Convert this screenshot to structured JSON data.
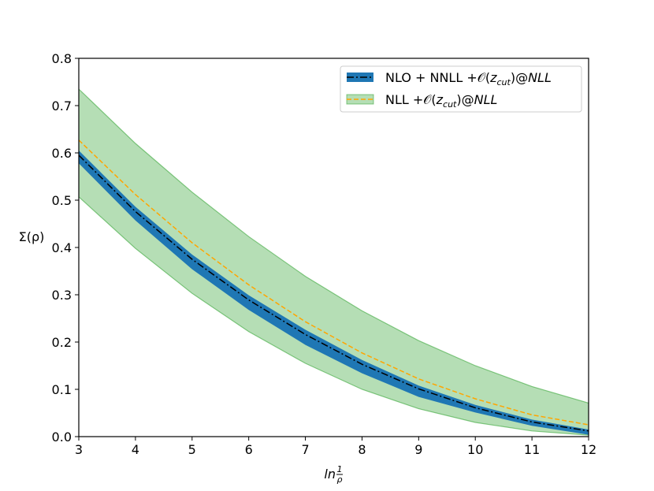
{
  "chart_data": {
    "type": "area",
    "x": [
      3,
      4,
      5,
      6,
      7,
      8,
      9,
      10,
      11,
      12
    ],
    "xlim": [
      3,
      12
    ],
    "ylim": [
      0,
      0.8
    ],
    "xticks": [
      "3",
      "4",
      "5",
      "6",
      "7",
      "8",
      "9",
      "10",
      "11",
      "12"
    ],
    "yticks": [
      "0.0",
      "0.1",
      "0.2",
      "0.3",
      "0.4",
      "0.5",
      "0.6",
      "0.7",
      "0.8"
    ],
    "xlabel": "ln",
    "xlabel_frac_num": "1",
    "xlabel_frac_den": "ρ",
    "ylabel": "Σ(ρ)",
    "grid": false,
    "legend_position": "top-right",
    "series": [
      {
        "name": "NLO + NNLL +𝒪(z_cut)@NLL",
        "legend_main": "NLO + NNLL +𝒪(",
        "legend_var": "z",
        "legend_sub": "cut",
        "legend_close": ")@",
        "legend_tail": "NLL",
        "style": "band with dash-dot central line",
        "band_color": "#1f77b4",
        "line_color": "#000000",
        "lower": [
          0.578,
          0.457,
          0.354,
          0.268,
          0.194,
          0.134,
          0.084,
          0.051,
          0.023,
          0.004
        ],
        "central": [
          0.595,
          0.476,
          0.375,
          0.289,
          0.216,
          0.153,
          0.101,
          0.061,
          0.031,
          0.012
        ],
        "upper": [
          0.605,
          0.486,
          0.385,
          0.299,
          0.226,
          0.162,
          0.108,
          0.067,
          0.036,
          0.015
        ]
      },
      {
        "name": "NLL +𝒪(z_cut)@NLL",
        "legend_main": "NLL +𝒪(",
        "legend_var": "z",
        "legend_sub": "cut",
        "legend_close": ")@",
        "legend_tail": "NLL",
        "style": "band with dashed central line",
        "band_color": "#2ca02c",
        "line_color": "#ffa500",
        "lower": [
          0.507,
          0.398,
          0.303,
          0.222,
          0.155,
          0.1,
          0.059,
          0.03,
          0.012,
          0.003
        ],
        "central": [
          0.627,
          0.512,
          0.41,
          0.321,
          0.243,
          0.177,
          0.122,
          0.08,
          0.046,
          0.025
        ],
        "upper": [
          0.735,
          0.62,
          0.517,
          0.423,
          0.339,
          0.266,
          0.203,
          0.15,
          0.106,
          0.071
        ]
      }
    ]
  }
}
